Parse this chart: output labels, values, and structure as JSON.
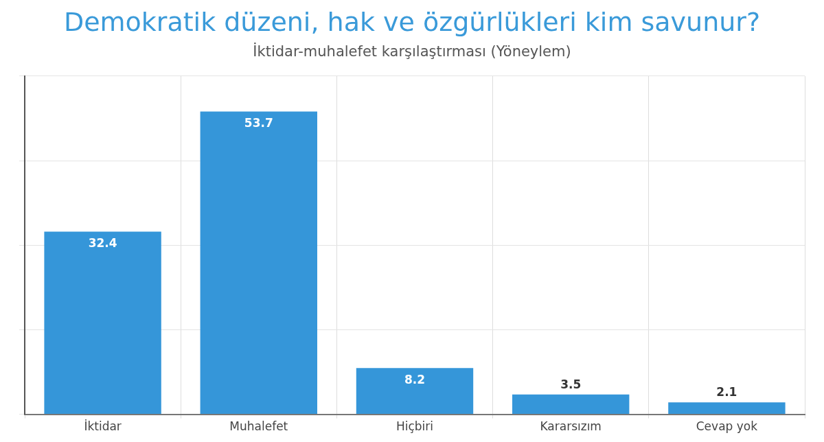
{
  "chart_data": {
    "type": "bar",
    "title": "Demokratik düzeni, hak ve özgürlükleri kim savunur?",
    "subtitle": "İktidar-muhalefet karşılaştırması (Yöneylem)",
    "categories": [
      "İktidar",
      "Muhalefet",
      "Hiçbiri",
      "Kararsızım",
      "Cevap yok"
    ],
    "values": [
      32.4,
      53.7,
      8.2,
      3.5,
      2.1
    ],
    "color": "#3596d9",
    "ylim": [
      0,
      60
    ],
    "yticks": [
      {
        "value": 0,
        "label": null
      },
      {
        "value": 15,
        "label": null
      },
      {
        "value": 30,
        "label": null
      },
      {
        "value": 45,
        "label": null
      },
      {
        "value": 60,
        "label": null
      }
    ],
    "grid": true,
    "tick_labels": "x",
    "data_labels": true,
    "legend": false
  }
}
